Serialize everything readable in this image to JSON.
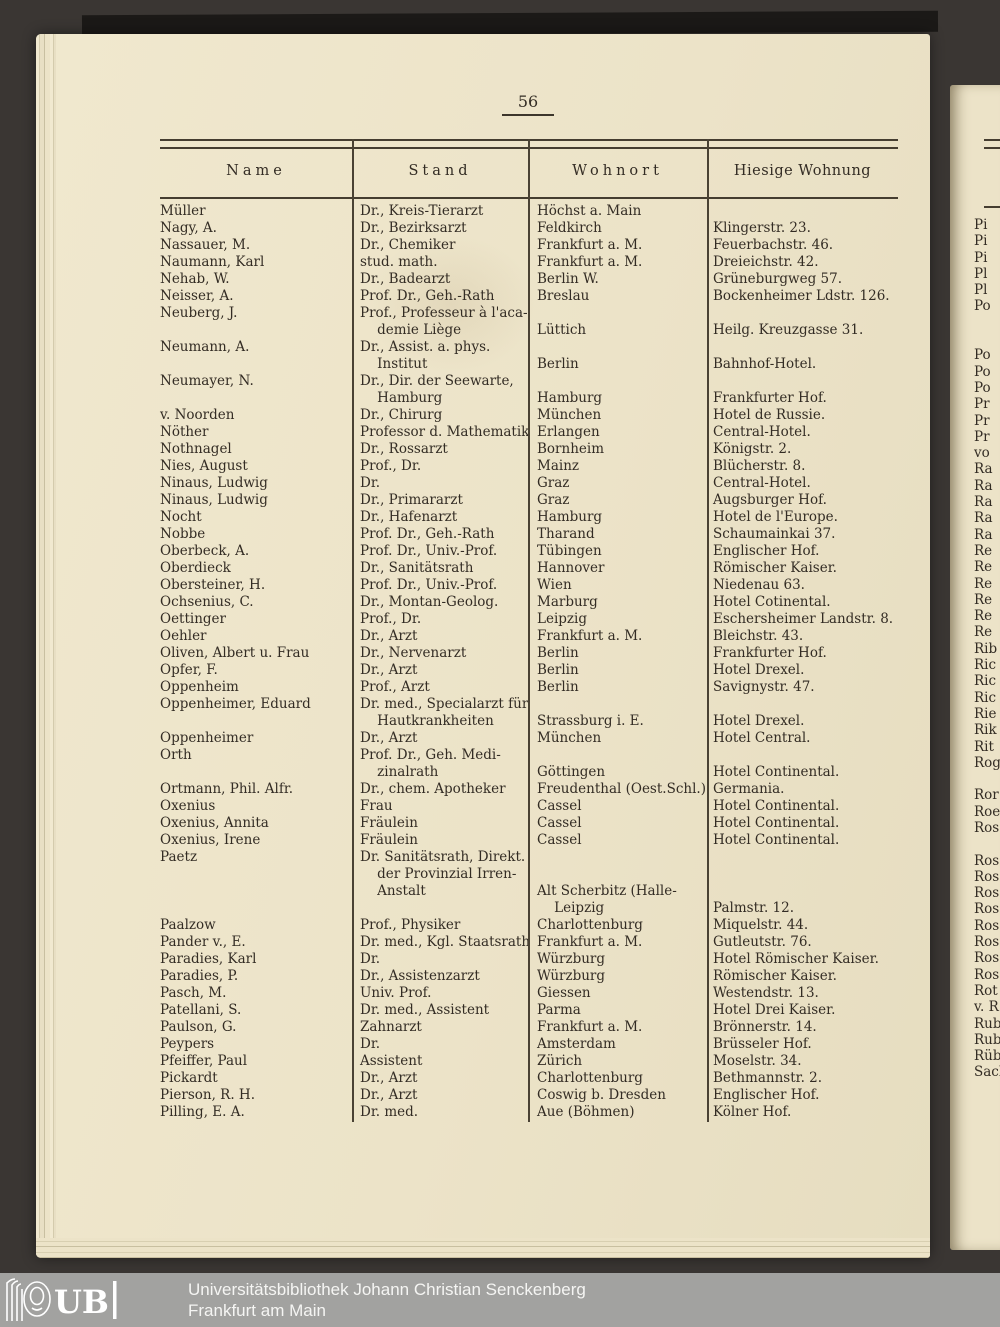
{
  "page_number": "56",
  "table": {
    "headers": [
      "Name",
      "Stand",
      "Wohnort",
      "Hiesige Wohnung"
    ],
    "rows": [
      {
        "name": "Müller",
        "stand": "Dr., Kreis-Tierarzt",
        "wohnort": "Höchst a. Main",
        "wohnung": ""
      },
      {
        "name": "Nagy, A.",
        "stand": "Dr., Bezirksarzt",
        "wohnort": "Feldkirch",
        "wohnung": "Klingerstr. 23."
      },
      {
        "name": "Nassauer, M.",
        "stand": "Dr., Chemiker",
        "wohnort": "Frankfurt a. M.",
        "wohnung": "Feuerbachstr. 46."
      },
      {
        "name": "Naumann, Karl",
        "stand": "stud. math.",
        "wohnort": "Frankfurt a. M.",
        "wohnung": "Dreieichstr. 42."
      },
      {
        "name": "Nehab, W.",
        "stand": "Dr., Badearzt",
        "wohnort": "Berlin W.",
        "wohnung": "Grüneburgweg 57."
      },
      {
        "name": "Neisser, A.",
        "stand": "Prof. Dr., Geh.-Rath",
        "wohnort": "Breslau",
        "wohnung": "Bockenheimer Ldstr. 126."
      },
      {
        "name": "Neuberg, J.",
        "stand": "Prof., Professeur à l'aca-\n    demie Liège",
        "wohnort": "\nLüttich",
        "wohnung": "\nHeilg. Kreuzgasse 31."
      },
      {
        "name": "Neumann, A.",
        "stand": "Dr., Assist. a. phys.\n    Institut",
        "wohnort": "\nBerlin",
        "wohnung": "\nBahnhof-Hotel."
      },
      {
        "name": "Neumayer, N.",
        "stand": "Dr., Dir. der Seewarte,\n    Hamburg",
        "wohnort": "\nHamburg",
        "wohnung": "\nFrankfurter Hof."
      },
      {
        "name": "v. Noorden",
        "stand": "Dr., Chirurg",
        "wohnort": "München",
        "wohnung": "Hotel de Russie."
      },
      {
        "name": "Nöther",
        "stand": "Professor d. Mathematik",
        "wohnort": "Erlangen",
        "wohnung": "Central-Hotel."
      },
      {
        "name": "Nothnagel",
        "stand": "Dr., Rossarzt",
        "wohnort": "Bornheim",
        "wohnung": "Königstr. 2."
      },
      {
        "name": "Nies, August",
        "stand": "Prof., Dr.",
        "wohnort": "Mainz",
        "wohnung": "Blücherstr. 8."
      },
      {
        "name": "Ninaus, Ludwig",
        "stand": "Dr.",
        "wohnort": "Graz",
        "wohnung": "Central-Hotel."
      },
      {
        "name": "Ninaus, Ludwig",
        "stand": "Dr., Primararzt",
        "wohnort": "Graz",
        "wohnung": "Augsburger Hof."
      },
      {
        "name": "Nocht",
        "stand": "Dr., Hafenarzt",
        "wohnort": "Hamburg",
        "wohnung": "Hotel de l'Europe."
      },
      {
        "name": "Nobbe",
        "stand": "Prof. Dr., Geh.-Rath",
        "wohnort": "Tharand",
        "wohnung": "Schaumainkai 37."
      },
      {
        "name": "Oberbeck, A.",
        "stand": "Prof. Dr., Univ.-Prof.",
        "wohnort": "Tübingen",
        "wohnung": "Englischer Hof."
      },
      {
        "name": "Oberdieck",
        "stand": "Dr., Sanitätsrath",
        "wohnort": "Hannover",
        "wohnung": "Römischer Kaiser."
      },
      {
        "name": "Obersteiner, H.",
        "stand": "Prof. Dr., Univ.-Prof.",
        "wohnort": "Wien",
        "wohnung": "Niedenau 63."
      },
      {
        "name": "Ochsenius, C.",
        "stand": "Dr., Montan-Geolog.",
        "wohnort": "Marburg",
        "wohnung": "Hotel Cotinental."
      },
      {
        "name": "Oettinger",
        "stand": "Prof., Dr.",
        "wohnort": "Leipzig",
        "wohnung": "Eschersheimer Landstr. 8."
      },
      {
        "name": "Oehler",
        "stand": "Dr., Arzt",
        "wohnort": "Frankfurt a. M.",
        "wohnung": "Bleichstr. 43."
      },
      {
        "name": "Oliven, Albert u. Frau",
        "stand": "Dr., Nervenarzt",
        "wohnort": "Berlin",
        "wohnung": "Frankfurter Hof."
      },
      {
        "name": "Opfer, F.",
        "stand": "Dr., Arzt",
        "wohnort": "Berlin",
        "wohnung": "Hotel Drexel."
      },
      {
        "name": "Oppenheim",
        "stand": "Prof., Arzt",
        "wohnort": "Berlin",
        "wohnung": "Savignystr. 47."
      },
      {
        "name": "Oppenheimer, Eduard",
        "stand": "Dr. med., Specialarzt für\n    Hautkrankheiten",
        "wohnort": "\nStrassburg i. E.",
        "wohnung": "\nHotel Drexel."
      },
      {
        "name": "Oppenheimer",
        "stand": "Dr., Arzt",
        "wohnort": "München",
        "wohnung": "Hotel Central."
      },
      {
        "name": "Orth",
        "stand": "Prof. Dr., Geh. Medi-\n    zinalrath",
        "wohnort": "\nGöttingen",
        "wohnung": "\nHotel Continental."
      },
      {
        "name": "Ortmann, Phil. Alfr.",
        "stand": "Dr., chem. Apotheker",
        "wohnort": "Freudenthal (Oest.Schl.)",
        "wohnung": "Germania."
      },
      {
        "name": "Oxenius",
        "stand": "Frau",
        "wohnort": "Cassel",
        "wohnung": "Hotel Continental."
      },
      {
        "name": "Oxenius, Annita",
        "stand": "Fräulein",
        "wohnort": "Cassel",
        "wohnung": "Hotel Continental."
      },
      {
        "name": "Oxenius, Irene",
        "stand": "Fräulein",
        "wohnort": "Cassel",
        "wohnung": "Hotel Continental."
      },
      {
        "name": "Paetz",
        "stand": "Dr. Sanitätsrath, Direkt.\n    der Provinzial Irren-\n    Anstalt",
        "wohnort": "\n\nAlt Scherbitz (Halle-\n    Leipzig",
        "wohnung": "\n\n\nPalmstr. 12."
      },
      {
        "name": "Paalzow",
        "stand": "Prof., Physiker",
        "wohnort": "Charlottenburg",
        "wohnung": "Miquelstr. 44."
      },
      {
        "name": "Pander v., E.",
        "stand": "Dr. med., Kgl. Staatsrath",
        "wohnort": "Frankfurt a. M.",
        "wohnung": "Gutleutstr. 76."
      },
      {
        "name": "Paradies, Karl",
        "stand": "Dr.",
        "wohnort": "Würzburg",
        "wohnung": "Hotel Römischer Kaiser."
      },
      {
        "name": "Paradies, P.",
        "stand": "Dr., Assistenzarzt",
        "wohnort": "Würzburg",
        "wohnung": "Römischer Kaiser."
      },
      {
        "name": "Pasch, M.",
        "stand": "Univ. Prof.",
        "wohnort": "Giessen",
        "wohnung": "Westendstr. 13."
      },
      {
        "name": "Patellani, S.",
        "stand": "Dr. med., Assistent",
        "wohnort": "Parma",
        "wohnung": "Hotel Drei Kaiser."
      },
      {
        "name": "Paulson, G.",
        "stand": "Zahnarzt",
        "wohnort": "Frankfurt a. M.",
        "wohnung": "Brönnerstr. 14."
      },
      {
        "name": "Peypers",
        "stand": "Dr.",
        "wohnort": "Amsterdam",
        "wohnung": "Brüsseler Hof."
      },
      {
        "name": "Pfeiffer, Paul",
        "stand": "Assistent",
        "wohnort": "Zürich",
        "wohnung": "Moselstr. 34."
      },
      {
        "name": "Pickardt",
        "stand": "Dr., Arzt",
        "wohnort": "Charlottenburg",
        "wohnung": "Bethmannstr. 2."
      },
      {
        "name": "Pierson, R. H.",
        "stand": "Dr., Arzt",
        "wohnort": "Coswig b. Dresden",
        "wohnung": "Englischer Hof."
      },
      {
        "name": "Pilling, E. A.",
        "stand": "Dr. med.",
        "wohnort": "Aue (Böhmen)",
        "wohnung": "Kölner Hof."
      }
    ]
  },
  "right_page_fragments": [
    "Pi",
    "Pi",
    "Pi",
    "Pl",
    "Pl",
    "Po",
    "",
    "",
    "Po",
    "Po",
    "Po",
    "Pr",
    "Pr",
    "Pr",
    "vo",
    "Ra",
    "Ra",
    "Ra",
    "Ra",
    "Ra",
    "Re",
    "Re",
    "Re",
    "Re",
    "Re",
    "Re",
    "Rib",
    "Ric",
    "Ric",
    "Ric",
    "Rie",
    "Rik",
    "Rit",
    "Rog",
    "",
    "Ror",
    "Roe",
    "Ros",
    "",
    "Ros",
    "Ros",
    "Ros",
    "Ros",
    "Ros",
    "Ros",
    "Ros",
    "Ros",
    "Rot",
    "v. R",
    "Rub",
    "Rub",
    "Rüb",
    "Sach"
  ],
  "banner": {
    "logo_text": "UB",
    "line1": "Universitätsbibliothek Johann Christian Senckenberg",
    "line2": "Frankfurt am Main"
  },
  "colors": {
    "paper": "#ece3c8",
    "background": "#3a3633",
    "banner_bg": "#a2a2a0",
    "ink": "#332c24",
    "banner_text": "#f5f5f3"
  }
}
